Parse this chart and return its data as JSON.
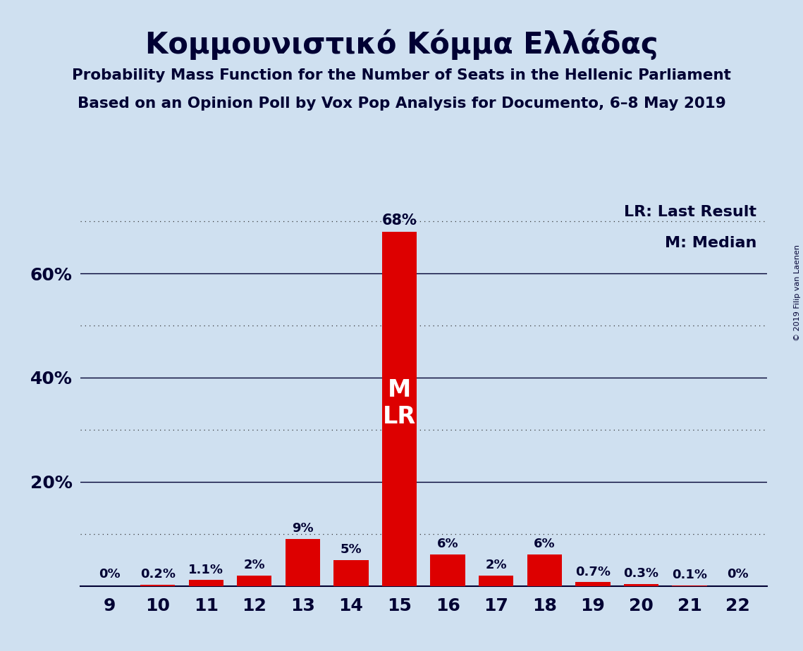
{
  "title": "Κομμουνιστικό Κόμμα Ελλάδας",
  "subtitle1": "Probability Mass Function for the Number of Seats in the Hellenic Parliament",
  "subtitle2": "Based on an Opinion Poll by Vox Pop Analysis for Documento, 6–8 May 2019",
  "copyright": "© 2019 Filip van Laenen",
  "categories": [
    9,
    10,
    11,
    12,
    13,
    14,
    15,
    16,
    17,
    18,
    19,
    20,
    21,
    22
  ],
  "values": [
    0.0,
    0.2,
    1.1,
    2.0,
    9.0,
    5.0,
    68.0,
    6.0,
    2.0,
    6.0,
    0.7,
    0.3,
    0.1,
    0.0
  ],
  "labels": [
    "0%",
    "0.2%",
    "1.1%",
    "2%",
    "9%",
    "5%",
    "68%",
    "6%",
    "2%",
    "6%",
    "0.7%",
    "0.3%",
    "0.1%",
    "0%"
  ],
  "bar_color": "#dd0000",
  "background_color": "#cfe0f0",
  "text_color": "#000033",
  "legend_lr": "LR: Last Result",
  "legend_m": "M: Median",
  "bar_text_inside": "#ffffff",
  "bar_text_outside": "#000033",
  "ylim": [
    0,
    75
  ],
  "solid_grid_ticks": [
    20,
    40,
    60
  ],
  "dotted_grid_ticks": [
    10,
    30,
    50,
    70
  ],
  "ytick_positions": [
    20,
    40,
    60
  ],
  "ytick_labels": [
    "20%",
    "40%",
    "60%"
  ]
}
